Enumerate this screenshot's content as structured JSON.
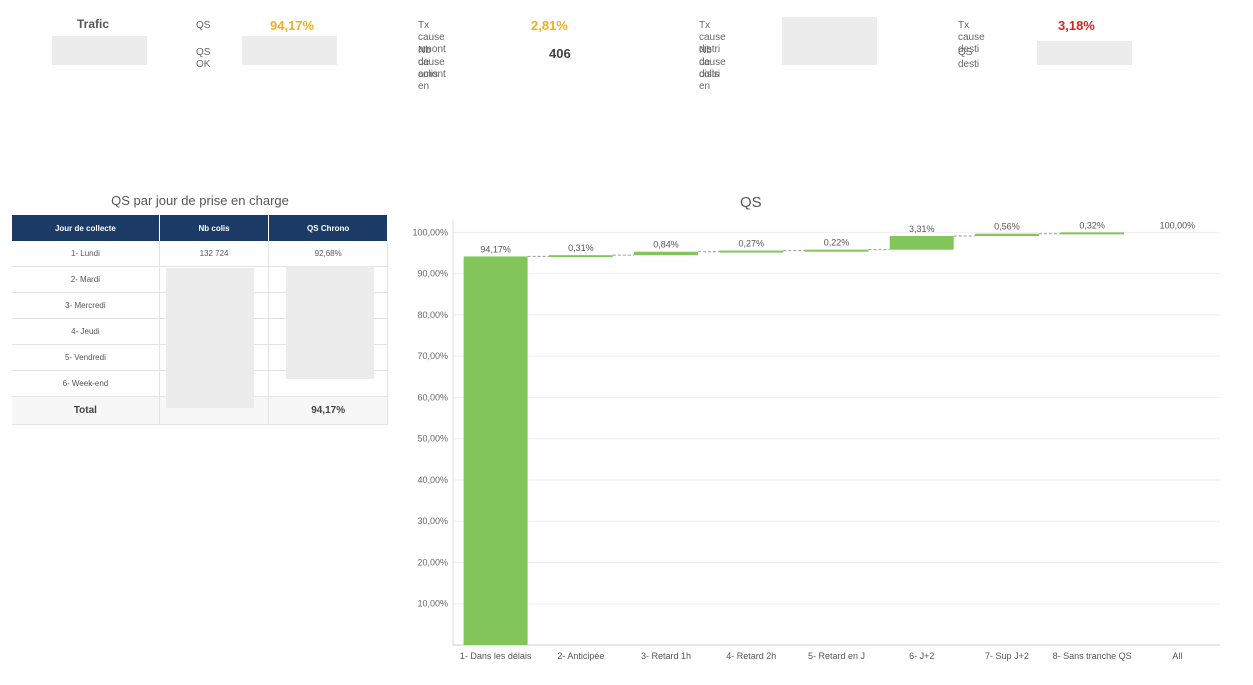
{
  "kpis": {
    "trafic_label": "Trafic",
    "qs_label": "QS",
    "qs_value": "94,17%",
    "qs_ok_label": "QS OK",
    "tx_amont_label": "Tx cause amont",
    "tx_amont_value": "2,81%",
    "nb_amont_label_1": "Nb de colis en",
    "nb_amont_label_2": "cause amont",
    "nb_amont_value": "406",
    "tx_distri_label": "Tx cause distri",
    "nb_distri_label_1": "Nb de colis en",
    "nb_distri_label_2": "cause distri",
    "tx_desti_label": "Tx cause desti",
    "tx_desti_value": "3,18%",
    "qs_desti_label": "QS desti"
  },
  "colors": {
    "qs_value": "#f2b01e",
    "tx_amont_value": "#f2b01e",
    "tx_desti_value": "#e02020",
    "header_bg": "#1b3a66",
    "bar": "#82c65b"
  },
  "table": {
    "title": "QS par jour de prise en charge",
    "headers": [
      "Jour de collecte",
      "Nb colis",
      "QS Chrono"
    ],
    "rows": [
      {
        "jour": "1- Lundi",
        "nb": "132 724",
        "qs": "92,68%"
      },
      {
        "jour": "2- Mardi",
        "nb": "",
        "qs": ""
      },
      {
        "jour": "3- Mercredi",
        "nb": "",
        "qs": ""
      },
      {
        "jour": "4- Jeudi",
        "nb": "",
        "qs": ""
      },
      {
        "jour": "5- Vendredi",
        "nb": "",
        "qs": ""
      },
      {
        "jour": "6- Week-end",
        "nb": "",
        "qs": ""
      }
    ],
    "total_label": "Total",
    "total_qs": "94,17%"
  },
  "chart_data": {
    "type": "bar",
    "title": "QS",
    "categories": [
      "1- Dans les délais",
      "2- Anticipée",
      "3- Retard 1h",
      "4- Retard 2h",
      "5- Retard en J",
      "6- J+2",
      "7- Sup J+2",
      "8- Sans tranche QS",
      "All"
    ],
    "values": [
      94.17,
      0.31,
      0.84,
      0.27,
      0.22,
      3.31,
      0.56,
      0.32,
      100.0
    ],
    "labels": [
      "94,17%",
      "0,31%",
      "0,84%",
      "0,27%",
      "0,22%",
      "3,31%",
      "0,56%",
      "0,32%",
      "100,00%"
    ],
    "ylim": [
      0,
      100
    ],
    "yticks": [
      "10,00%",
      "20,00%",
      "30,00%",
      "40,00%",
      "50,00%",
      "60,00%",
      "70,00%",
      "80,00%",
      "90,00%",
      "100,00%"
    ],
    "ytick_values": [
      10,
      20,
      30,
      40,
      50,
      60,
      70,
      80,
      90,
      100
    ],
    "grid": true,
    "xlabel": "",
    "ylabel": ""
  }
}
